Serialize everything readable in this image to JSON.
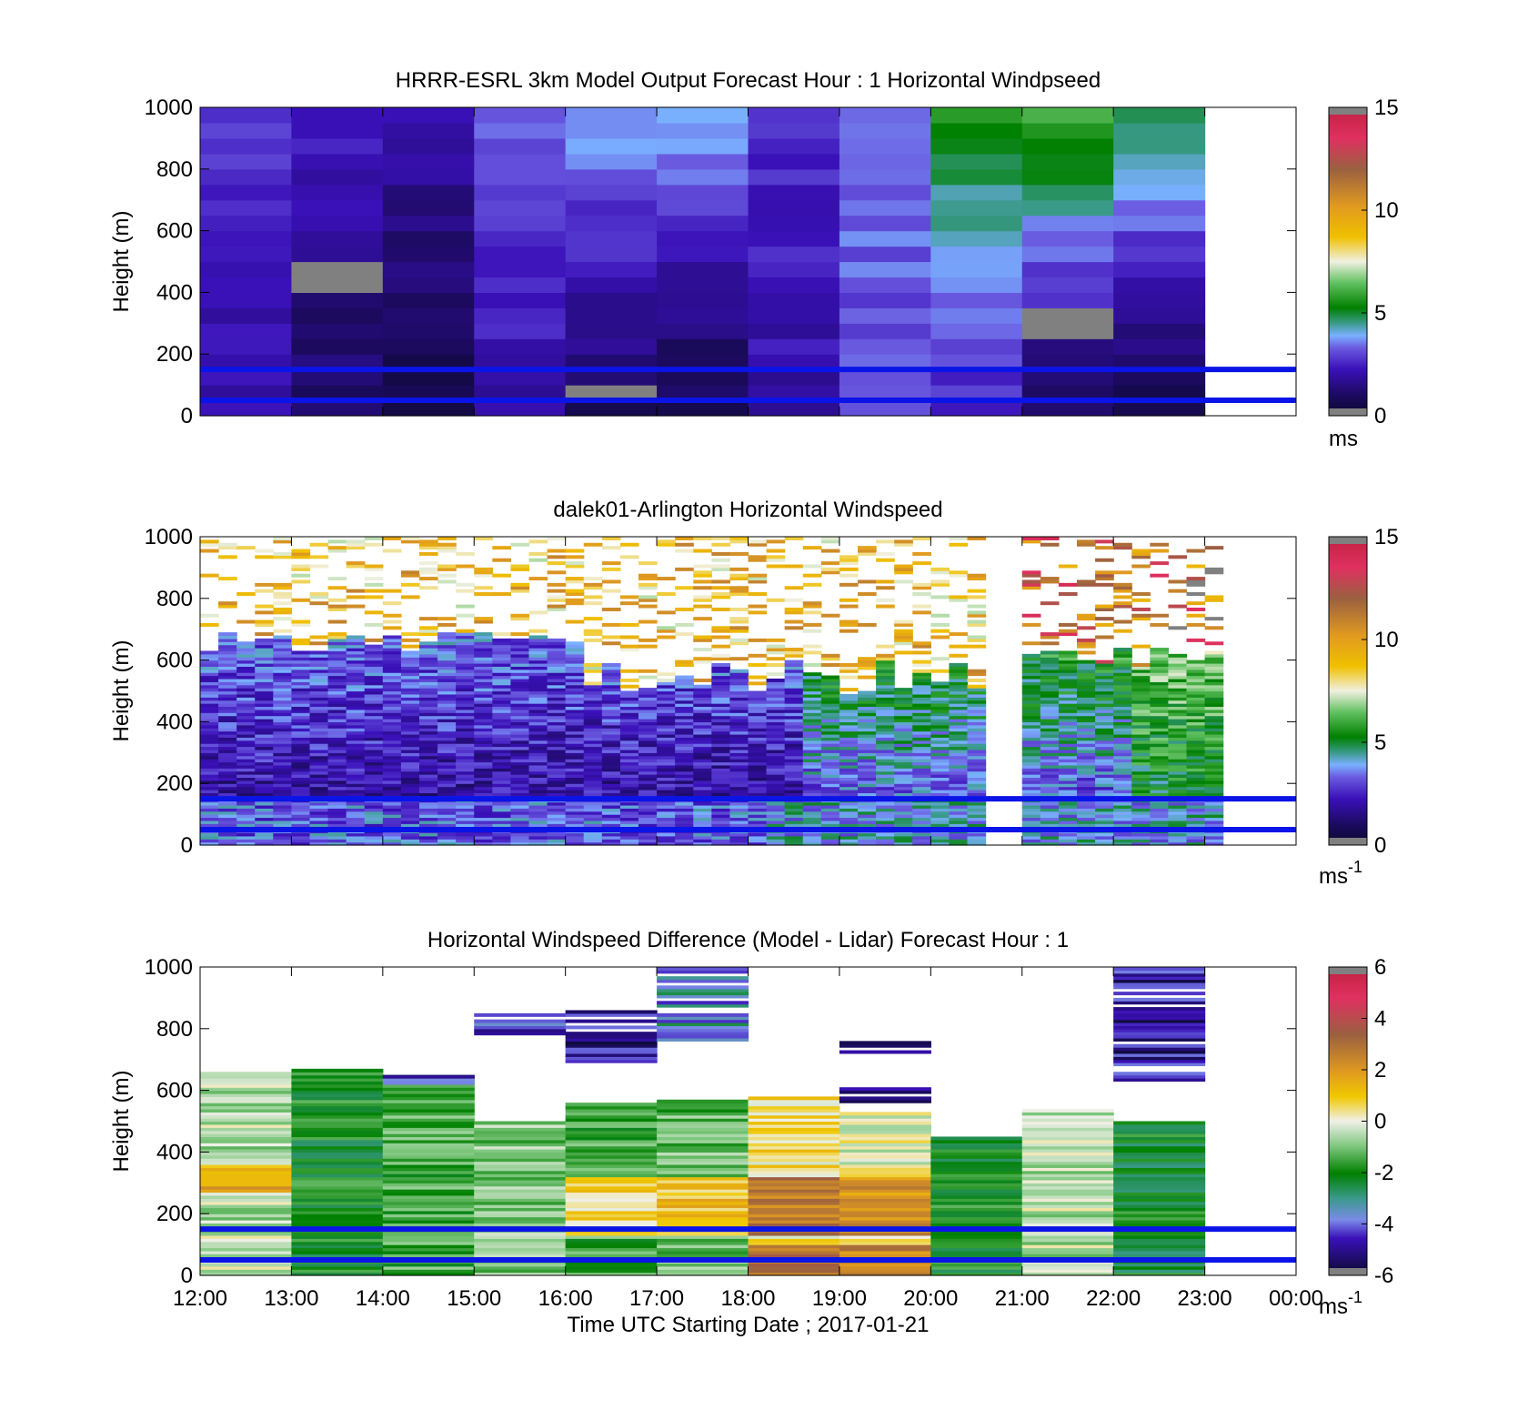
{
  "chart_data": [
    {
      "type": "heatmap",
      "title": "HRRR-ESRL 3km Model Output   Forecast Hour : 1 Horizontal Windpseed",
      "ylabel": "Height (m)",
      "xlabel": "",
      "ylim": [
        0,
        1000
      ],
      "yticks": [
        "0",
        "200",
        "400",
        "600",
        "800",
        "1000"
      ],
      "xticks": [
        "12:00",
        "13:00",
        "14:00",
        "15:00",
        "16:00",
        "17:00",
        "18:00",
        "19:00",
        "20:00",
        "21:00",
        "22:00",
        "23:00",
        "00:00"
      ],
      "show_xtick_labels": false,
      "colorbar": {
        "min": 0,
        "max": 15,
        "ticks": [
          "0",
          "5",
          "10",
          "15"
        ],
        "unit": "ms",
        "unit_sup": ""
      },
      "pattern": "model",
      "approx_columns": [
        {
          "hour": "12:00",
          "speed_low": 2.0,
          "speed_high": 2.8
        },
        {
          "hour": "13:00",
          "speed_low": 1.0,
          "speed_high": 2.4
        },
        {
          "hour": "14:00",
          "speed_low": 0.6,
          "speed_high": 2.2
        },
        {
          "hour": "15:00",
          "speed_low": 2.0,
          "speed_high": 3.4
        },
        {
          "hour": "16:00",
          "speed_low": 1.0,
          "speed_high": 4.0
        },
        {
          "hour": "17:00",
          "speed_low": 0.8,
          "speed_high": 4.0
        },
        {
          "hour": "18:00",
          "speed_low": 2.0,
          "speed_high": 2.8
        },
        {
          "hour": "19:00",
          "speed_low": 3.0,
          "speed_high": 3.6
        },
        {
          "hour": "20:00",
          "speed_low": 2.5,
          "speed_high": 5.5
        },
        {
          "hour": "21:00",
          "speed_low": 1.0,
          "speed_high": 6.0
        },
        {
          "hour": "22:00",
          "speed_low": 0.5,
          "speed_high": 5.2
        }
      ],
      "reference_lines_m": [
        150,
        50
      ]
    },
    {
      "type": "heatmap",
      "title": "dalek01-Arlington  Horizontal Windspeed",
      "ylabel": "Height (m)",
      "xlabel": "",
      "ylim": [
        0,
        1000
      ],
      "yticks": [
        "0",
        "200",
        "400",
        "600",
        "800",
        "1000"
      ],
      "xticks": [
        "12:00",
        "13:00",
        "14:00",
        "15:00",
        "16:00",
        "17:00",
        "18:00",
        "19:00",
        "20:00",
        "21:00",
        "22:00",
        "23:00",
        "00:00"
      ],
      "show_xtick_labels": false,
      "colorbar": {
        "min": 0,
        "max": 15,
        "ticks": [
          "0",
          "5",
          "10",
          "15"
        ],
        "unit": "ms",
        "unit_sup": "-1"
      },
      "pattern": "lidar",
      "data_gap": [
        "20:30",
        "20:50"
      ],
      "reference_lines_m": [
        150,
        50
      ]
    },
    {
      "type": "heatmap",
      "title": "Horizontal Windspeed Difference (Model - Lidar) Forecast Hour : 1",
      "ylabel": "Height (m)",
      "xlabel": "Time UTC  Starting Date ; 2017-01-21",
      "ylim": [
        0,
        1000
      ],
      "yticks": [
        "0",
        "200",
        "400",
        "600",
        "800",
        "1000"
      ],
      "xticks": [
        "12:00",
        "13:00",
        "14:00",
        "15:00",
        "16:00",
        "17:00",
        "18:00",
        "19:00",
        "20:00",
        "21:00",
        "22:00",
        "23:00",
        "00:00"
      ],
      "show_xtick_labels": true,
      "colorbar": {
        "min": -6,
        "max": 6,
        "ticks": [
          "-6",
          "-4",
          "-2",
          "0",
          "2",
          "4",
          "6"
        ],
        "unit": "ms",
        "unit_sup": "-1"
      },
      "pattern": "diff",
      "approx_columns": [
        {
          "hour": "12:00",
          "top_m": 660,
          "mean_diff": -0.5
        },
        {
          "hour": "13:00",
          "top_m": 670,
          "mean_diff": -2.0
        },
        {
          "hour": "14:00",
          "top_m": 650,
          "mean_diff": -1.5
        },
        {
          "hour": "15:00",
          "top_m": 500,
          "mean_diff": -1.0
        },
        {
          "hour": "16:00",
          "top_m": 560,
          "mean_diff": -1.5
        },
        {
          "hour": "17:00",
          "top_m": 570,
          "mean_diff": -1.2
        },
        {
          "hour": "18:00",
          "top_m": 580,
          "mean_diff": 0.5
        },
        {
          "hour": "19:00",
          "top_m": 530,
          "mean_diff": 0.0
        },
        {
          "hour": "20:00",
          "top_m": 450,
          "mean_diff": -2.0
        },
        {
          "hour": "21:00",
          "top_m": 540,
          "mean_diff": -0.5
        },
        {
          "hour": "22:00",
          "top_m": 500,
          "mean_diff": -2.2
        }
      ],
      "reference_lines_m": [
        150,
        50
      ]
    }
  ]
}
